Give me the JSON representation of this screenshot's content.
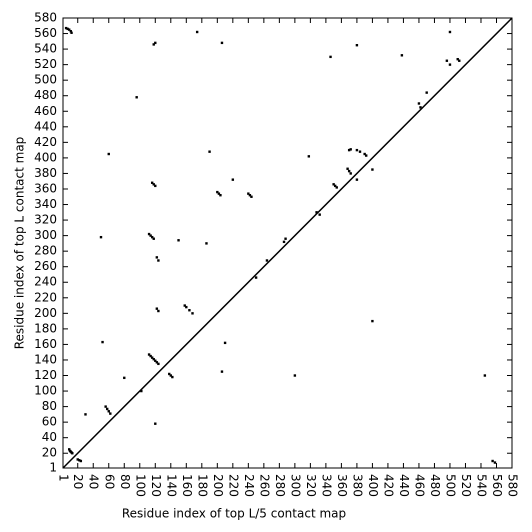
{
  "chart_data": {
    "type": "scatter",
    "xlabel": "Residue index of top L/5 contact map",
    "ylabel": "Residue index of top L contact map",
    "color": "#000000",
    "diagonal": true,
    "xlim": [
      1,
      580
    ],
    "ylim": [
      1,
      580
    ],
    "xticks": [
      1,
      20,
      40,
      60,
      80,
      100,
      120,
      140,
      160,
      180,
      200,
      220,
      240,
      260,
      280,
      300,
      320,
      340,
      360,
      380,
      400,
      420,
      440,
      460,
      480,
      500,
      520,
      540,
      560,
      580
    ],
    "yticks": [
      1,
      20,
      40,
      60,
      80,
      100,
      120,
      140,
      160,
      180,
      200,
      220,
      240,
      260,
      280,
      300,
      320,
      340,
      360,
      380,
      400,
      420,
      440,
      460,
      480,
      500,
      520,
      540,
      560,
      580
    ],
    "x": [
      5,
      7,
      9,
      11,
      12,
      9,
      10,
      11,
      12,
      13,
      20,
      22,
      24,
      116,
      118,
      120,
      112,
      114,
      116,
      118,
      122,
      124,
      122,
      124,
      112,
      114,
      116,
      118,
      120,
      122,
      124,
      138,
      140,
      142,
      158,
      160,
      164,
      168,
      56,
      58,
      60,
      62,
      200,
      202,
      204,
      240,
      242,
      244,
      350,
      352,
      354,
      368,
      370,
      372,
      370,
      372,
      380,
      384,
      390,
      392,
      380,
      510,
      512,
      496,
      500,
      555,
      558,
      30,
      80,
      96,
      60,
      50,
      52,
      150,
      186,
      190,
      210,
      206,
      300,
      318,
      328,
      332,
      346,
      380,
      400,
      400,
      438,
      460,
      462,
      470,
      500,
      545,
      286,
      288,
      264,
      250,
      174,
      120,
      102,
      220,
      120,
      118,
      206
    ],
    "values": [
      567,
      566,
      565,
      563,
      561,
      25,
      23,
      22,
      21,
      20,
      12,
      11,
      10,
      368,
      366,
      364,
      302,
      300,
      298,
      296,
      272,
      268,
      206,
      203,
      147,
      145,
      143,
      141,
      139,
      137,
      135,
      122,
      120,
      118,
      210,
      208,
      204,
      200,
      80,
      77,
      74,
      71,
      356,
      354,
      352,
      354,
      352,
      350,
      366,
      364,
      362,
      386,
      383,
      380,
      410,
      411,
      410,
      408,
      405,
      403,
      372,
      527,
      525,
      525,
      562,
      10,
      8,
      70,
      117,
      478,
      405,
      298,
      163,
      294,
      290,
      408,
      162,
      125,
      120,
      402,
      330,
      327,
      530,
      545,
      385,
      190,
      532,
      470,
      465,
      484,
      520,
      120,
      292,
      296,
      268,
      246,
      562,
      58,
      100,
      372,
      548,
      546,
      548
    ]
  }
}
